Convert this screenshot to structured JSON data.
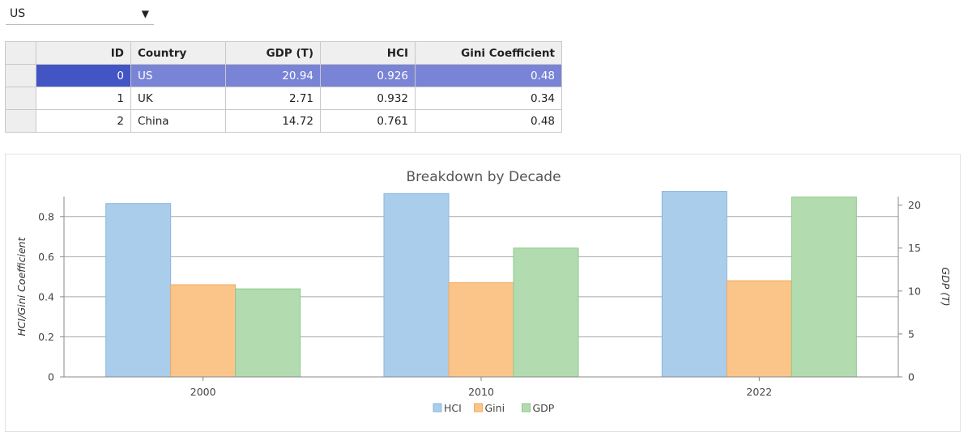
{
  "dropdown": {
    "selected": "US"
  },
  "table": {
    "columns": [
      "ID",
      "Country",
      "GDP (T)",
      "HCI",
      "Gini Coefficient"
    ],
    "rows": [
      {
        "id": "0",
        "country": "US",
        "gdp": "20.94",
        "hci": "0.926",
        "gini": "0.48",
        "selected": true
      },
      {
        "id": "1",
        "country": "UK",
        "gdp": "2.71",
        "hci": "0.932",
        "gini": "0.34",
        "selected": false
      },
      {
        "id": "2",
        "country": "China",
        "gdp": "14.72",
        "hci": "0.761",
        "gini": "0.48",
        "selected": false
      }
    ]
  },
  "chart_data": {
    "type": "bar",
    "title": "Breakdown by Decade",
    "categories": [
      "2000",
      "2010",
      "2022"
    ],
    "series": [
      {
        "name": "HCI",
        "axis": "left",
        "color": "#aacdec",
        "stroke": "#8ab6df",
        "values": [
          0.865,
          0.915,
          0.926
        ]
      },
      {
        "name": "Gini",
        "axis": "left",
        "color": "#fbc589",
        "stroke": "#eeaa66",
        "values": [
          0.46,
          0.47,
          0.48
        ]
      },
      {
        "name": "GDP",
        "axis": "right",
        "color": "#b2dcb0",
        "stroke": "#8ec98b",
        "values": [
          10.25,
          15.0,
          20.94
        ]
      }
    ],
    "ylabel_left": "HCI/Gini Coefficient",
    "ylabel_right": "GDP (T)",
    "ylim_left": [
      0,
      0.9
    ],
    "yticks_left": [
      "0",
      "0.2",
      "0.4",
      "0.6",
      "0.8"
    ],
    "ylim_right": [
      0,
      21
    ],
    "yticks_right": [
      "0",
      "5",
      "10",
      "15",
      "20"
    ],
    "grid": true,
    "legend": "bottom"
  }
}
